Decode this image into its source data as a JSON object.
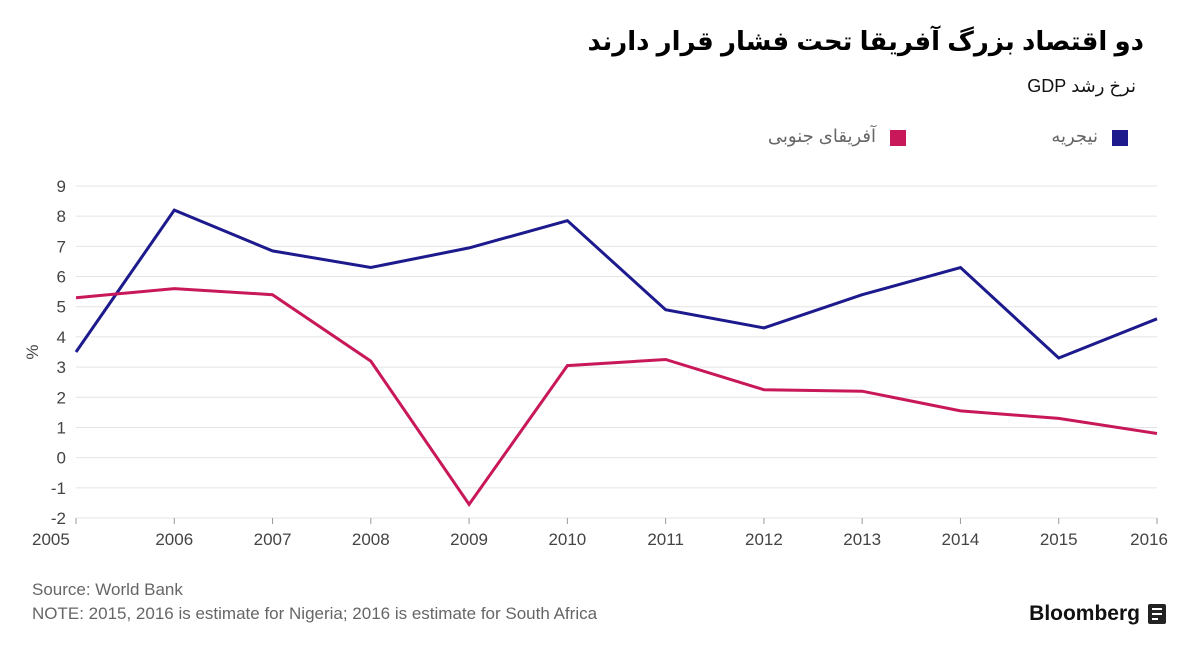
{
  "header": {
    "title": "دو اقتصاد بزرگ آفریقا تحت فشار قرار دارند",
    "subtitle": "نرخ رشد GDP"
  },
  "legend": {
    "nigeria_label": "نیجریه",
    "south_africa_label": "آفریقای جنوبی"
  },
  "footer": {
    "source": "Source: World Bank",
    "note": "NOTE: 2015, 2016 is estimate for Nigeria; 2016 is estimate for South Africa",
    "brand": "Bloomberg"
  },
  "colors": {
    "nigeria": "#1c1a8c",
    "south_africa": "#c8185a",
    "grid": "#e4e4e4",
    "axis_text": "#444444"
  },
  "chart_data": {
    "type": "line",
    "title": "دو اقتصاد بزرگ آفریقا تحت فشار قرار دارند",
    "subtitle": "نرخ رشد GDP",
    "xlabel": "",
    "ylabel": "%",
    "x": [
      2005,
      2006,
      2007,
      2008,
      2009,
      2010,
      2011,
      2012,
      2013,
      2014,
      2015,
      2016
    ],
    "xlim": [
      2005,
      2016
    ],
    "ylim": [
      -2,
      9
    ],
    "yticks": [
      -2,
      -1,
      0,
      1,
      2,
      3,
      4,
      5,
      6,
      7,
      8,
      9
    ],
    "grid": true,
    "legend_position": "top-right",
    "series": [
      {
        "name": "نیجریه",
        "key": "nigeria",
        "values": [
          3.5,
          8.2,
          6.85,
          6.3,
          6.95,
          7.85,
          4.9,
          4.3,
          5.4,
          6.3,
          3.3,
          4.6
        ]
      },
      {
        "name": "آفریقای جنوبی",
        "key": "south_africa",
        "values": [
          5.3,
          5.6,
          5.4,
          3.2,
          -1.55,
          3.05,
          3.25,
          2.25,
          2.2,
          1.55,
          1.3,
          0.8
        ]
      }
    ]
  }
}
